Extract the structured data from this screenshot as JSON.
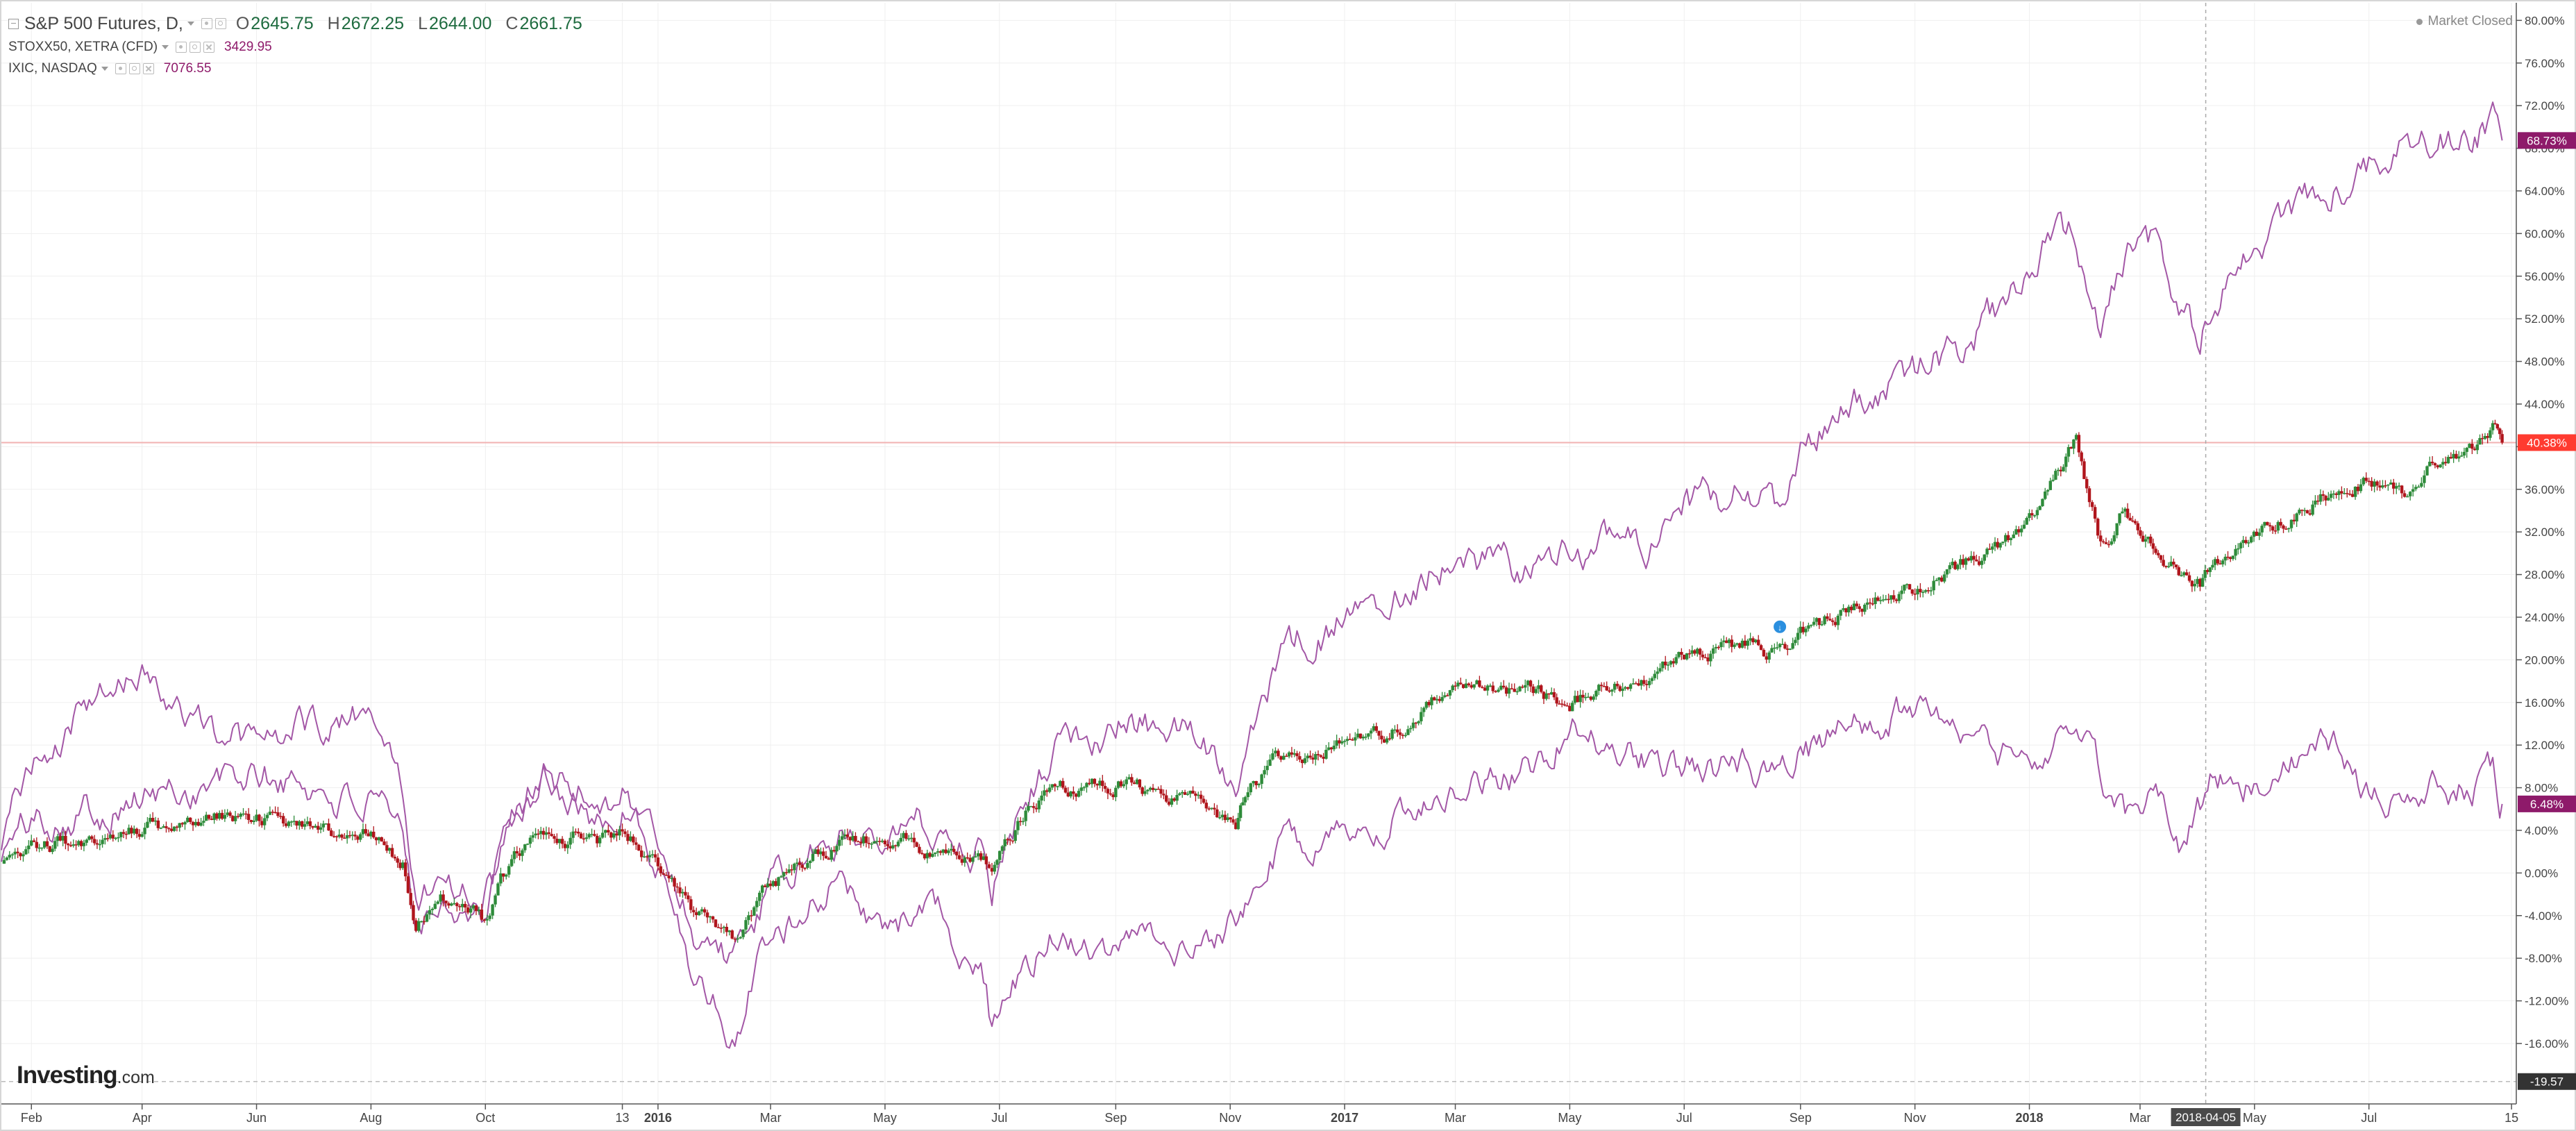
{
  "legend": {
    "main": {
      "title": "S&P 500 Futures, D,",
      "open_key": "O",
      "open": "2645.75",
      "high_key": "H",
      "high": "2672.25",
      "low_key": "L",
      "low": "2644.00",
      "close_key": "C",
      "close": "2661.75"
    },
    "comparisons": [
      {
        "symbol": "STOXX50, XETRA (CFD)",
        "value": "3429.95"
      },
      {
        "symbol": "IXIC, NASDAQ",
        "value": "7076.55"
      }
    ]
  },
  "market_status": "Market Closed",
  "watermark": {
    "brand": "Investing",
    "suffix": ".com"
  },
  "colors": {
    "up_candle": "#2e8b3a",
    "down_candle": "#b0151c",
    "compare_line": "#a357a6",
    "hline": "#f2b2b2",
    "price_badge_red": "#ff3b30",
    "price_badge_purple": "#8e1a6a",
    "grid": "#efefef"
  },
  "chart_data": {
    "type": "line",
    "title": "S&P 500 Futures, D,",
    "y_unit": "percent change",
    "ylim": [
      -19.57,
      81
    ],
    "y_ticks": [
      "80.00%",
      "76.00%",
      "72.00%",
      "68.00%",
      "64.00%",
      "60.00%",
      "56.00%",
      "52.00%",
      "48.00%",
      "44.00%",
      "40.00%",
      "36.00%",
      "32.00%",
      "28.00%",
      "24.00%",
      "20.00%",
      "16.00%",
      "12.00%",
      "8.00%",
      "4.00%",
      "0.00%",
      "-4.00%",
      "-8.00%",
      "-12.00%",
      "-16.00%"
    ],
    "x_ticks": [
      {
        "label": "Feb",
        "date": "2015-02-01",
        "bold": false
      },
      {
        "label": "Apr",
        "date": "2015-04-01",
        "bold": false
      },
      {
        "label": "Jun",
        "date": "2015-06-01",
        "bold": false
      },
      {
        "label": "Aug",
        "date": "2015-08-01",
        "bold": false
      },
      {
        "label": "Oct",
        "date": "2015-10-01",
        "bold": false
      },
      {
        "label": "13",
        "date": "2015-12-13",
        "bold": false
      },
      {
        "label": "2016",
        "date": "2016-01-01",
        "bold": true
      },
      {
        "label": "Mar",
        "date": "2016-03-01",
        "bold": false
      },
      {
        "label": "May",
        "date": "2016-05-01",
        "bold": false
      },
      {
        "label": "Jul",
        "date": "2016-07-01",
        "bold": false
      },
      {
        "label": "Sep",
        "date": "2016-09-01",
        "bold": false
      },
      {
        "label": "Nov",
        "date": "2016-11-01",
        "bold": false
      },
      {
        "label": "2017",
        "date": "2017-01-01",
        "bold": true
      },
      {
        "label": "Mar",
        "date": "2017-03-01",
        "bold": false
      },
      {
        "label": "May",
        "date": "2017-05-01",
        "bold": false
      },
      {
        "label": "Jul",
        "date": "2017-07-01",
        "bold": false
      },
      {
        "label": "Sep",
        "date": "2017-09-01",
        "bold": false
      },
      {
        "label": "Nov",
        "date": "2017-11-01",
        "bold": false
      },
      {
        "label": "2018",
        "date": "2018-01-01",
        "bold": true
      },
      {
        "label": "Mar",
        "date": "2018-03-01",
        "bold": false
      },
      {
        "label": "May",
        "date": "2018-05-01",
        "bold": false
      },
      {
        "label": "Jul",
        "date": "2018-07-01",
        "bold": false
      },
      {
        "label": "15",
        "date": "2018-09-15",
        "bold": false
      }
    ],
    "crosshair": {
      "date": "2018-04-05",
      "label": "2018-04-05"
    },
    "hline_value": 40.38,
    "badges": [
      {
        "text": "68.73%",
        "value": 68.73,
        "style": "purple"
      },
      {
        "text": "40.38%",
        "value": 40.38,
        "style": "red"
      },
      {
        "text": "6.48%",
        "value": 6.48,
        "style": "purple"
      },
      {
        "text": "-19.57",
        "value": -19.57,
        "style": "dark"
      }
    ],
    "candles": {
      "name": "S&P 500 Futures",
      "x": [
        "2015-01-16",
        "2015-02-01",
        "2015-03-01",
        "2015-04-01",
        "2015-05-01",
        "2015-06-01",
        "2015-07-01",
        "2015-08-01",
        "2015-08-18",
        "2015-08-25",
        "2015-09-10",
        "2015-09-29",
        "2015-10-15",
        "2015-11-01",
        "2015-12-01",
        "2015-12-13",
        "2016-01-01",
        "2016-01-20",
        "2016-02-11",
        "2016-03-01",
        "2016-04-01",
        "2016-05-01",
        "2016-06-01",
        "2016-06-24",
        "2016-06-27",
        "2016-07-15",
        "2016-08-01",
        "2016-09-01",
        "2016-10-15",
        "2016-11-04",
        "2016-11-09",
        "2016-12-01",
        "2017-01-01",
        "2017-02-01",
        "2017-03-01",
        "2017-04-13",
        "2017-05-01",
        "2017-06-01",
        "2017-07-01",
        "2017-08-01",
        "2017-08-21",
        "2017-09-01",
        "2017-10-01",
        "2017-11-01",
        "2017-12-01",
        "2018-01-01",
        "2018-01-15",
        "2018-01-26",
        "2018-02-02",
        "2018-02-08",
        "2018-02-21",
        "2018-03-08",
        "2018-03-23",
        "2018-04-02",
        "2018-04-10",
        "2018-04-25",
        "2018-05-15",
        "2018-06-01",
        "2018-06-15",
        "2018-07-01",
        "2018-07-20",
        "2018-08-01",
        "2018-08-25",
        "2018-09-05",
        "2018-09-10"
      ],
      "y": [
        0.5,
        2.5,
        3,
        4,
        5,
        5.5,
        4.5,
        4,
        1,
        -5,
        -2.5,
        -4.5,
        1,
        4,
        3,
        4,
        0.5,
        -4,
        -6,
        -1,
        2.5,
        3.5,
        2,
        0.5,
        -1,
        6,
        7.5,
        8.5,
        6.5,
        4,
        7.5,
        11.5,
        12,
        14,
        18,
        17,
        16,
        17.5,
        20,
        21.5,
        20.5,
        22.5,
        25,
        27,
        29,
        33,
        37,
        41,
        35,
        31,
        34,
        31,
        28,
        27,
        29,
        30,
        33,
        35,
        35.5,
        37,
        36,
        38,
        39.5,
        41.5,
        40.38
      ]
    },
    "series": [
      {
        "name": "IXIC, NASDAQ",
        "x": [
          "2015-01-16",
          "2015-02-01",
          "2015-03-01",
          "2015-04-01",
          "2015-05-01",
          "2015-06-01",
          "2015-07-01",
          "2015-08-01",
          "2015-08-18",
          "2015-08-25",
          "2015-09-10",
          "2015-09-29",
          "2015-10-15",
          "2015-11-01",
          "2015-12-01",
          "2015-12-13",
          "2016-01-01",
          "2016-01-20",
          "2016-02-11",
          "2016-03-01",
          "2016-04-01",
          "2016-05-01",
          "2016-06-01",
          "2016-06-24",
          "2016-06-27",
          "2016-07-15",
          "2016-08-01",
          "2016-09-01",
          "2016-10-15",
          "2016-11-04",
          "2016-11-09",
          "2016-12-01",
          "2017-01-01",
          "2017-02-01",
          "2017-03-01",
          "2017-04-13",
          "2017-05-01",
          "2017-06-01",
          "2017-06-12",
          "2017-07-01",
          "2017-08-01",
          "2017-08-21",
          "2017-09-01",
          "2017-10-01",
          "2017-11-01",
          "2017-12-01",
          "2018-01-01",
          "2018-01-15",
          "2018-01-26",
          "2018-02-02",
          "2018-02-08",
          "2018-02-21",
          "2018-03-08",
          "2018-03-23",
          "2018-04-02",
          "2018-04-10",
          "2018-04-25",
          "2018-05-15",
          "2018-06-01",
          "2018-06-15",
          "2018-07-01",
          "2018-07-20",
          "2018-08-01",
          "2018-08-25",
          "2018-09-05",
          "2018-09-10"
        ],
        "y": [
          2,
          5,
          6,
          7,
          8,
          9,
          8,
          6,
          3,
          -4,
          -2,
          -4,
          4,
          9,
          7,
          8,
          3,
          -5,
          -8,
          -2,
          3,
          5,
          4,
          2,
          -1,
          8,
          12,
          14,
          13,
          9,
          14,
          21,
          24,
          27,
          30,
          28,
          30,
          33,
          29,
          34,
          36,
          34,
          40,
          44,
          47,
          50,
          55,
          61,
          60,
          53,
          50,
          58,
          59,
          53,
          50,
          54,
          58,
          61,
          63,
          64,
          66,
          70,
          69,
          68,
          71,
          68.73
        ]
      },
      {
        "name": "STOXX50, XETRA (CFD)",
        "x": [
          "2015-01-16",
          "2015-02-01",
          "2015-03-01",
          "2015-04-01",
          "2015-05-01",
          "2015-06-01",
          "2015-07-01",
          "2015-08-01",
          "2015-08-18",
          "2015-08-25",
          "2015-09-10",
          "2015-09-29",
          "2015-10-15",
          "2015-11-01",
          "2015-12-01",
          "2015-12-13",
          "2016-01-01",
          "2016-01-20",
          "2016-02-11",
          "2016-03-01",
          "2016-04-01",
          "2016-05-01",
          "2016-06-01",
          "2016-06-24",
          "2016-06-27",
          "2016-07-15",
          "2016-08-01",
          "2016-09-01",
          "2016-10-15",
          "2016-11-04",
          "2016-11-09",
          "2016-12-01",
          "2017-01-01",
          "2017-02-01",
          "2017-03-01",
          "2017-04-13",
          "2017-05-01",
          "2017-06-01",
          "2017-07-01",
          "2017-08-01",
          "2017-08-21",
          "2017-09-01",
          "2017-10-01",
          "2017-11-01",
          "2017-12-01",
          "2018-01-01",
          "2018-01-15",
          "2018-01-26",
          "2018-02-02",
          "2018-02-08",
          "2018-02-21",
          "2018-03-08",
          "2018-03-23",
          "2018-04-02",
          "2018-04-10",
          "2018-04-25",
          "2018-05-15",
          "2018-06-01",
          "2018-06-15",
          "2018-07-01",
          "2018-07-20",
          "2018-08-01",
          "2018-08-25",
          "2018-09-05",
          "2018-09-10"
        ],
        "y": [
          3,
          10,
          15,
          19,
          14,
          12,
          14,
          15,
          8,
          -2,
          -1,
          -3,
          6,
          10,
          5,
          7,
          1,
          -9,
          -15,
          -6,
          -1,
          -5,
          -4,
          -11,
          -15,
          -9,
          -5,
          -7,
          -6,
          -4,
          -2,
          3,
          4,
          6,
          8,
          10,
          14,
          11,
          10,
          10,
          8,
          11,
          14,
          15,
          12,
          11,
          12,
          14,
          13,
          9,
          6,
          8,
          3,
          6,
          9,
          8,
          10,
          12,
          11,
          7,
          6,
          9,
          8,
          10,
          6.48
        ]
      }
    ]
  }
}
